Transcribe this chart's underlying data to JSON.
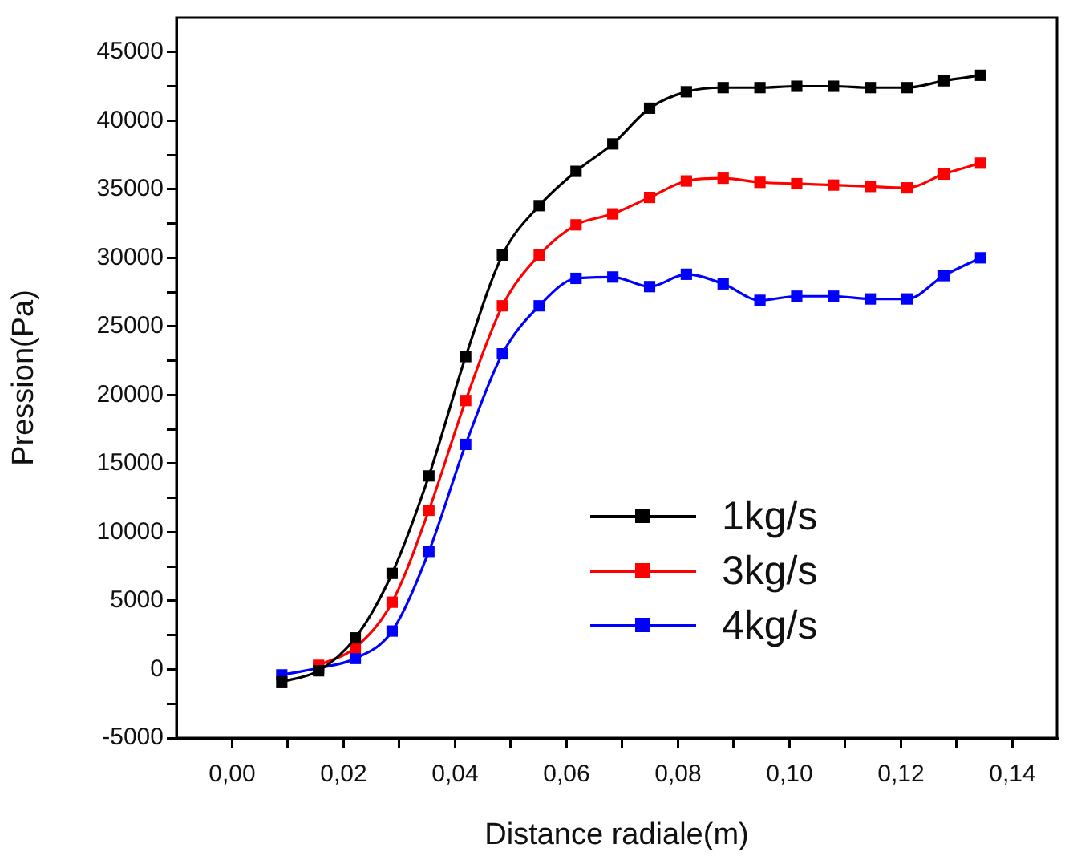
{
  "chart_data": {
    "type": "line",
    "xlabel": "Distance radiale(m)",
    "ylabel": "Pression(Pa)",
    "x": [
      0.0089,
      0.0155,
      0.0221,
      0.0287,
      0.0353,
      0.0419,
      0.0485,
      0.0551,
      0.0617,
      0.0683,
      0.0749,
      0.0815,
      0.0881,
      0.0947,
      0.1013,
      0.1079,
      0.1145,
      0.1211,
      0.1277,
      0.1343
    ],
    "series": [
      {
        "name": "1kg/s",
        "color": "#000000",
        "values": [
          -900,
          -100,
          2300,
          7000,
          14100,
          22800,
          30200,
          33800,
          36300,
          38300,
          40900,
          42100,
          42400,
          42400,
          42500,
          42500,
          42400,
          42400,
          42900,
          43300
        ]
      },
      {
        "name": "3kg/s",
        "color": "#ff0000",
        "values": [
          null,
          300,
          1600,
          4900,
          11600,
          19600,
          26500,
          30200,
          32400,
          33200,
          34400,
          35600,
          35800,
          35500,
          35400,
          35300,
          35200,
          35100,
          36100,
          36900
        ]
      },
      {
        "name": "4kg/s",
        "color": "#0000ff",
        "values": [
          -400,
          100,
          800,
          2800,
          8600,
          16400,
          23000,
          26500,
          28500,
          28600,
          27900,
          28800,
          28100,
          26900,
          27200,
          27200,
          27000,
          27000,
          28700,
          30000
        ]
      }
    ],
    "xlim": [
      -0.01,
      0.148
    ],
    "xticks": [
      {
        "value": 0,
        "label": "0,00"
      },
      {
        "value": 0.01,
        "label": null
      },
      {
        "value": 0.02,
        "label": "0,02"
      },
      {
        "value": 0.03,
        "label": null
      },
      {
        "value": 0.04,
        "label": "0,04"
      },
      {
        "value": 0.05,
        "label": null
      },
      {
        "value": 0.06,
        "label": "0,06"
      },
      {
        "value": 0.07,
        "label": null
      },
      {
        "value": 0.08,
        "label": "0,08"
      },
      {
        "value": 0.09,
        "label": null
      },
      {
        "value": 0.1,
        "label": "0,10"
      },
      {
        "value": 0.11,
        "label": null
      },
      {
        "value": 0.12,
        "label": "0,12"
      },
      {
        "value": 0.13,
        "label": null
      },
      {
        "value": 0.14,
        "label": "0,14"
      }
    ],
    "ylim": [
      -5000,
      47500
    ],
    "yticks": [
      -5000,
      {
        "value": -2500,
        "label": null
      },
      0,
      {
        "value": 2500,
        "label": null
      },
      5000,
      {
        "value": 7500,
        "label": null
      },
      10000,
      {
        "value": 12500,
        "label": null
      },
      15000,
      {
        "value": 17500,
        "label": null
      },
      20000,
      {
        "value": 22500,
        "label": null
      },
      25000,
      {
        "value": 27500,
        "label": null
      },
      30000,
      {
        "value": 32500,
        "label": null
      },
      35000,
      {
        "value": 37500,
        "label": null
      },
      40000,
      {
        "value": 42500,
        "label": null
      },
      45000
    ],
    "grid": false,
    "legend": "bottom right",
    "marker": "square",
    "line_style": "solid"
  }
}
